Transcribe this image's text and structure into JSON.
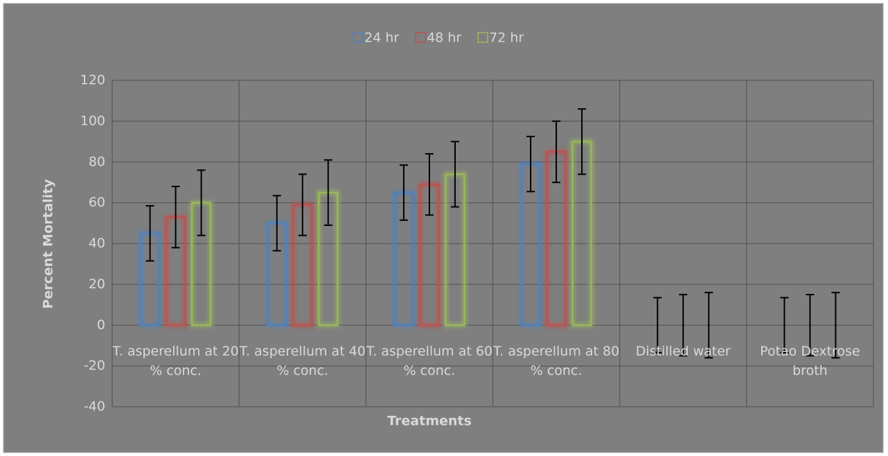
{
  "chart_data": {
    "type": "bar",
    "categories": [
      "T. asperellum at 20 % conc.",
      "T. asperellum at 40 % conc.",
      "T. asperellum at 60 % conc.",
      "T. asperellum at 80 % conc.",
      "Distilled water",
      "Potao Dextrose broth"
    ],
    "series": [
      {
        "name": "24 hr",
        "color": "#4f81bd",
        "values": [
          45,
          50,
          65,
          79,
          0,
          0
        ],
        "errors": [
          13.5,
          13.5,
          13.5,
          13.5,
          13.5,
          13.5
        ]
      },
      {
        "name": "48 hr",
        "color": "#c0504d",
        "values": [
          53,
          59,
          69,
          85,
          0,
          0
        ],
        "errors": [
          15,
          15,
          15,
          15,
          15,
          15
        ]
      },
      {
        "name": "72 hr",
        "color": "#9bbb59",
        "values": [
          60,
          65,
          74,
          90,
          0,
          0
        ],
        "errors": [
          16,
          16,
          16,
          16,
          16,
          16
        ]
      }
    ],
    "xlabel": "Treatments",
    "ylabel": "Percent Mortality",
    "ylim": [
      -40,
      120
    ],
    "yticks": [
      -40,
      -20,
      0,
      20,
      40,
      60,
      80,
      100,
      120
    ],
    "grid": true,
    "legend": "top"
  }
}
